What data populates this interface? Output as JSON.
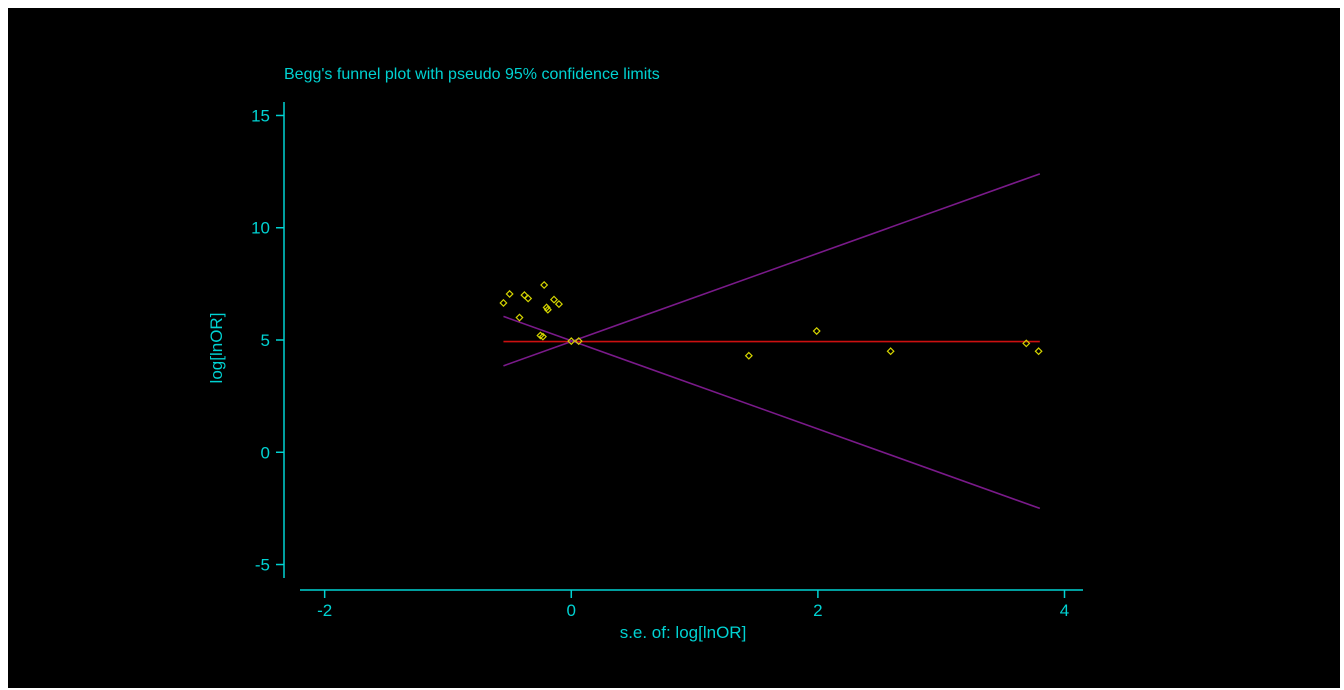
{
  "chart_data": {
    "type": "scatter",
    "title": "Begg's funnel plot with pseudo 95% confidence limits",
    "xlabel": "s.e. of: log[lnOR]",
    "ylabel": "log[lnOR]",
    "xlim": [
      -2.2,
      4.15
    ],
    "ylim": [
      -5.6,
      15.6
    ],
    "x_ticks": [
      -2,
      0,
      2,
      4
    ],
    "y_ticks": [
      -5,
      0,
      5,
      10,
      15
    ],
    "x_tick_labels": [
      "-2",
      "0",
      "2",
      "4"
    ],
    "y_tick_labels": [
      "-5",
      "0",
      "5",
      "10",
      "15"
    ],
    "grid": false,
    "legend": "none",
    "points": [
      {
        "x": -0.55,
        "y": 6.65
      },
      {
        "x": -0.5,
        "y": 7.05
      },
      {
        "x": -0.42,
        "y": 6.0
      },
      {
        "x": -0.38,
        "y": 7.0
      },
      {
        "x": -0.35,
        "y": 6.85
      },
      {
        "x": -0.25,
        "y": 5.2
      },
      {
        "x": -0.23,
        "y": 5.15
      },
      {
        "x": -0.22,
        "y": 7.45
      },
      {
        "x": -0.2,
        "y": 6.45
      },
      {
        "x": -0.19,
        "y": 6.35
      },
      {
        "x": -0.14,
        "y": 6.8
      },
      {
        "x": -0.1,
        "y": 6.6
      },
      {
        "x": 0.0,
        "y": 4.95
      },
      {
        "x": 0.06,
        "y": 4.95
      },
      {
        "x": 1.44,
        "y": 4.3
      },
      {
        "x": 1.99,
        "y": 5.4
      },
      {
        "x": 2.59,
        "y": 4.5
      },
      {
        "x": 3.69,
        "y": 4.85
      },
      {
        "x": 3.79,
        "y": 4.5
      }
    ],
    "lines": [
      {
        "role": "pooled-estimate",
        "color": "#cc1010",
        "x": [
          -0.55,
          3.8
        ],
        "y": [
          4.93,
          4.93
        ]
      },
      {
        "role": "upper-limit",
        "color": "#7a1a8a",
        "x": [
          -0.55,
          3.8
        ],
        "y": [
          3.85,
          12.4
        ]
      },
      {
        "role": "lower-limit",
        "color": "#7a1a8a",
        "x": [
          -0.55,
          3.8
        ],
        "y": [
          6.05,
          -2.5
        ]
      }
    ],
    "colors": {
      "background": "#000000",
      "axis": "#00d2d2",
      "points": "#d4d400"
    }
  }
}
